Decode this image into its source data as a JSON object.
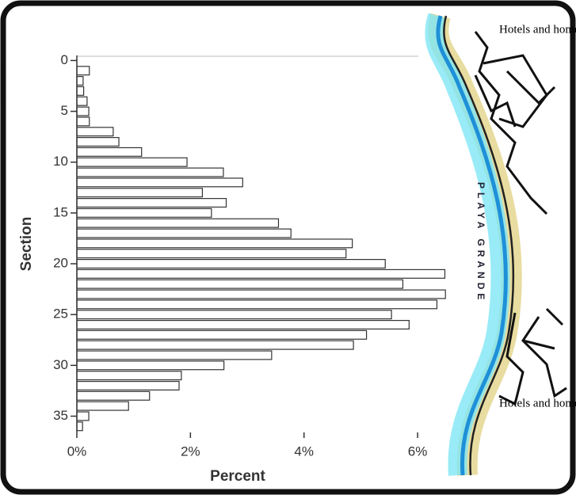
{
  "chart_data": {
    "type": "hbar",
    "x_label": "Percent",
    "y_label": "Section",
    "y": [
      1,
      2,
      3,
      4,
      5,
      6,
      7,
      8,
      9,
      10,
      11,
      12,
      13,
      14,
      15,
      16,
      17,
      18,
      19,
      20,
      21,
      22,
      23,
      24,
      25,
      26,
      27,
      28,
      29,
      30,
      31,
      32,
      33,
      34,
      35,
      36
    ],
    "values": [
      0.22,
      0.11,
      0.12,
      0.18,
      0.21,
      0.22,
      0.64,
      0.74,
      1.14,
      1.94,
      2.58,
      2.92,
      2.21,
      2.63,
      2.37,
      3.55,
      3.77,
      4.85,
      4.74,
      5.43,
      6.48,
      5.74,
      6.49,
      6.34,
      5.54,
      5.85,
      5.1,
      4.87,
      3.43,
      2.59,
      1.84,
      1.8,
      1.28,
      0.91,
      0.21,
      0.1
    ],
    "color": "#ffffff",
    "edge_color": "#333333",
    "xlim": [
      0,
      6.25
    ],
    "xticks": [
      {
        "value": 0,
        "label": "0%"
      },
      {
        "value": 2,
        "label": "2%"
      },
      {
        "value": 4,
        "label": "4%"
      },
      {
        "value": 6,
        "label": "6%"
      }
    ],
    "ylim": [
      -0.5,
      36.6
    ],
    "yticks": [
      0,
      5,
      10,
      15,
      20,
      25,
      30,
      35
    ],
    "annotations": [
      "Hotels and homes",
      "Hotels and homes",
      "PLAYA GRANDE"
    ]
  }
}
